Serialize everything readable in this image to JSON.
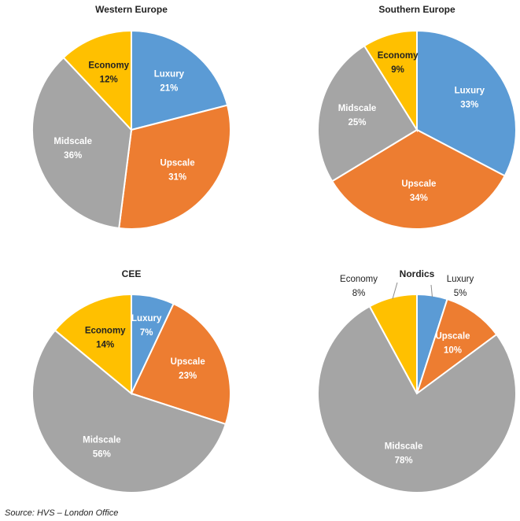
{
  "colors": {
    "Luxury": "#5b9bd5",
    "Upscale": "#ed7d31",
    "Midscale": "#a5a5a5",
    "Economy": "#ffc000"
  },
  "chart_data": [
    {
      "type": "pie",
      "title": "Western Europe",
      "slices": [
        {
          "label": "Luxury",
          "value": 21,
          "value_label": "21%"
        },
        {
          "label": "Upscale",
          "value": 31,
          "value_label": "31%"
        },
        {
          "label": "Midscale",
          "value": 36,
          "value_label": "36%"
        },
        {
          "label": "Economy",
          "value": 12,
          "value_label": "12%"
        }
      ]
    },
    {
      "type": "pie",
      "title": "Southern  Europe",
      "slices": [
        {
          "label": "Luxury",
          "value": 33,
          "value_label": "33%"
        },
        {
          "label": "Upscale",
          "value": 34,
          "value_label": "34%"
        },
        {
          "label": "Midscale",
          "value": 25,
          "value_label": "25%"
        },
        {
          "label": "Economy",
          "value": 9,
          "value_label": "9%"
        }
      ]
    },
    {
      "type": "pie",
      "title": "CEE",
      "slices": [
        {
          "label": "Luxury",
          "value": 7,
          "value_label": "7%"
        },
        {
          "label": "Upscale",
          "value": 23,
          "value_label": "23%"
        },
        {
          "label": "Midscale",
          "value": 56,
          "value_label": "56%"
        },
        {
          "label": "Economy",
          "value": 14,
          "value_label": "14%"
        }
      ]
    },
    {
      "type": "pie",
      "title": "Nordics",
      "slices": [
        {
          "label": "Luxury",
          "value": 5,
          "value_label": "5%"
        },
        {
          "label": "Upscale",
          "value": 10,
          "value_label": "10%"
        },
        {
          "label": "Midscale",
          "value": 78,
          "value_label": "78%"
        },
        {
          "label": "Economy",
          "value": 8,
          "value_label": "8%"
        }
      ]
    }
  ],
  "source": "Source: HVS – London Office"
}
